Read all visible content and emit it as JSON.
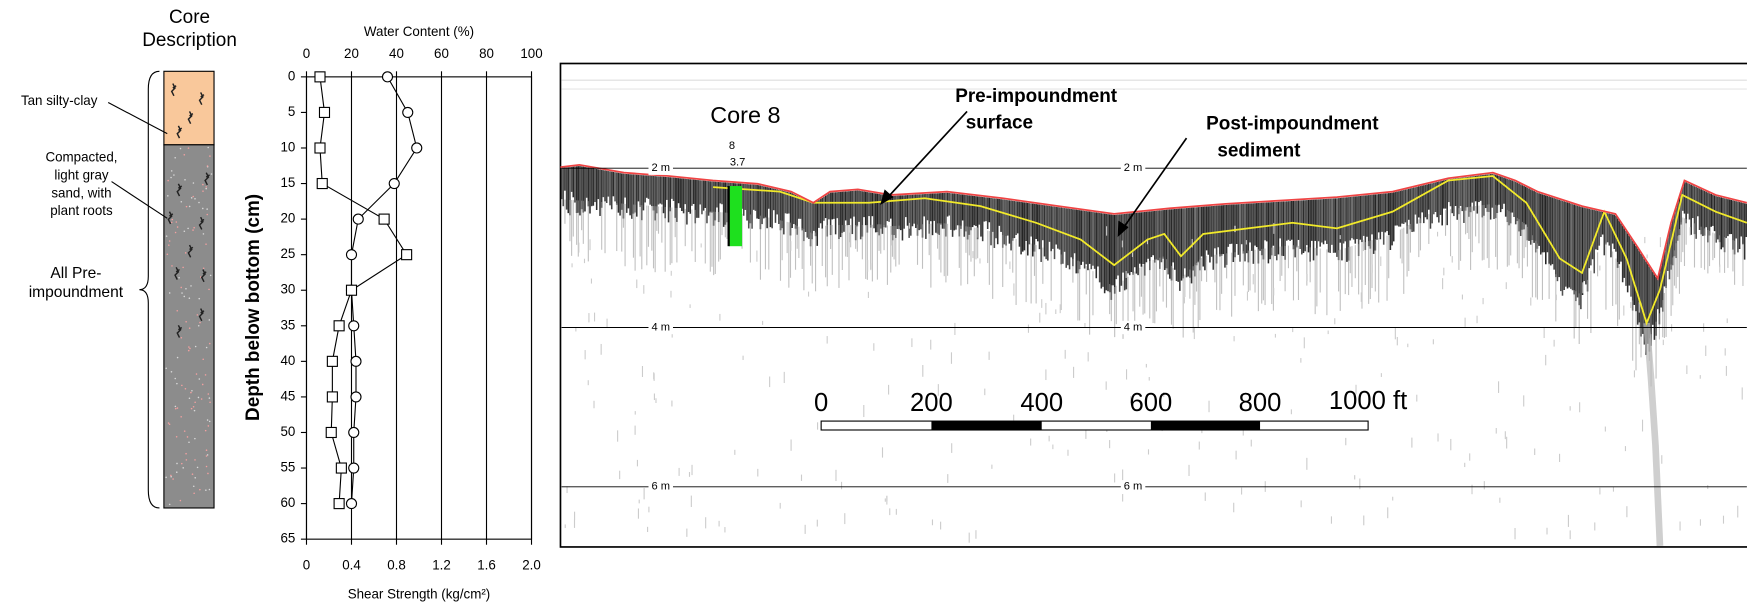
{
  "chart_data": {
    "type": "line",
    "xlabel": "Shear Strength (kg/cm²)",
    "x2label": "Water Content (%)",
    "ylabel": "Depth below bottom (cm)",
    "y": [
      0,
      5,
      10,
      15,
      20,
      25,
      30,
      35,
      40,
      45,
      50,
      55,
      60
    ],
    "ylim": [
      0,
      65
    ],
    "y_inverted": true,
    "yticks": [
      0,
      5,
      10,
      15,
      20,
      25,
      30,
      35,
      40,
      45,
      50,
      55,
      60,
      65
    ],
    "xlim": [
      0,
      2
    ],
    "xticks": [
      0,
      0.4,
      0.8,
      1.2,
      1.6,
      {
        "value": 2,
        "label": "2.0"
      }
    ],
    "x2lim": [
      0,
      100
    ],
    "x2ticks": [
      0,
      20,
      40,
      60,
      80,
      100
    ],
    "grid": true,
    "series": [
      {
        "marker": "circle",
        "axis": "x2",
        "color": "#000000",
        "values": [
          36,
          45,
          49,
          39,
          23,
          20,
          20,
          21,
          22,
          22,
          21,
          21,
          20
        ]
      },
      {
        "marker": "square",
        "color": "#000000",
        "values": [
          0.12,
          0.16,
          0.12,
          0.14,
          0.69,
          0.89,
          0.4,
          0.29,
          0.23,
          0.23,
          0.22,
          0.31,
          0.29
        ]
      }
    ]
  },
  "core": {
    "title": [
      "Core",
      "Description"
    ],
    "top_layer": "Tan silty-clay",
    "bottom_layer": [
      "Compacted,",
      "light gray",
      "sand, with",
      "plant roots"
    ],
    "bracket": [
      "All Pre-",
      "impoundment"
    ]
  },
  "sonar": {
    "core_label": "Core 8",
    "core_id": "8",
    "core_depth": "3.7",
    "depth_labels": [
      "2 m",
      "2 m",
      "4 m",
      "4 m",
      "6 m",
      "6 m"
    ],
    "pre_label": [
      "Pre-impoundment",
      "surface"
    ],
    "post_label": [
      "Post-impoundment",
      "sediment"
    ],
    "scale_labels": [
      "0",
      "200",
      "400",
      "600",
      "800",
      "1000 ft"
    ]
  }
}
